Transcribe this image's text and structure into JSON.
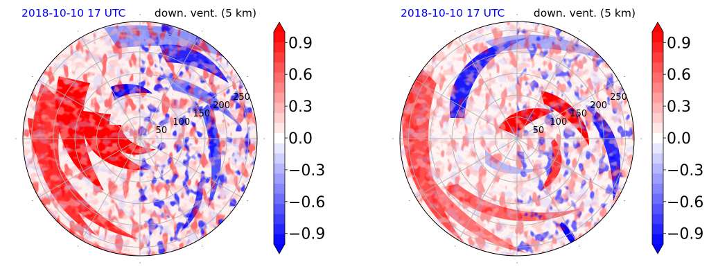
{
  "colors": {
    "title_blue": "#0000ff",
    "title_black": "#000000",
    "grid": "#b0b0b0",
    "spine": "#000000"
  },
  "colormap": {
    "name": "bwr",
    "levels": 21,
    "vmin": -1.0,
    "vmax": 1.0,
    "extend": "both"
  },
  "chart_data": [
    {
      "type": "heatmap",
      "projection": "polar",
      "title": "",
      "left_title": "2018-10-10 17 UTC",
      "right_title": "down. vent. (5 km)",
      "radial_ticks": [
        50,
        100,
        150,
        200,
        250
      ],
      "radial_max": 270,
      "angular_gridlines_deg": [
        0,
        30,
        60,
        90,
        120,
        150,
        180,
        210,
        240,
        270,
        300,
        330
      ],
      "grid": true,
      "colorbar": {
        "ticks": [
          "0.9",
          "0.6",
          "0.3",
          "0.0",
          "−0.3",
          "−0.6",
          "−0.9"
        ],
        "tick_values": [
          0.9,
          0.6,
          0.3,
          0.0,
          -0.3,
          -0.6,
          -0.9
        ]
      }
    },
    {
      "type": "heatmap",
      "projection": "polar",
      "title": "",
      "left_title": "2018-10-10 17 UTC",
      "right_title": "down. vent. (5 km)",
      "radial_ticks": [
        50,
        100,
        150,
        200,
        250
      ],
      "radial_max": 270,
      "angular_gridlines_deg": [
        0,
        30,
        60,
        90,
        120,
        150,
        180,
        210,
        240,
        270,
        300,
        330
      ],
      "grid": true,
      "colorbar": {
        "ticks": [
          "0.9",
          "0.6",
          "0.3",
          "0.0",
          "−0.3",
          "−0.6",
          "−0.9"
        ],
        "tick_values": [
          0.9,
          0.6,
          0.3,
          0.0,
          -0.3,
          -0.6,
          -0.9
        ]
      }
    }
  ]
}
